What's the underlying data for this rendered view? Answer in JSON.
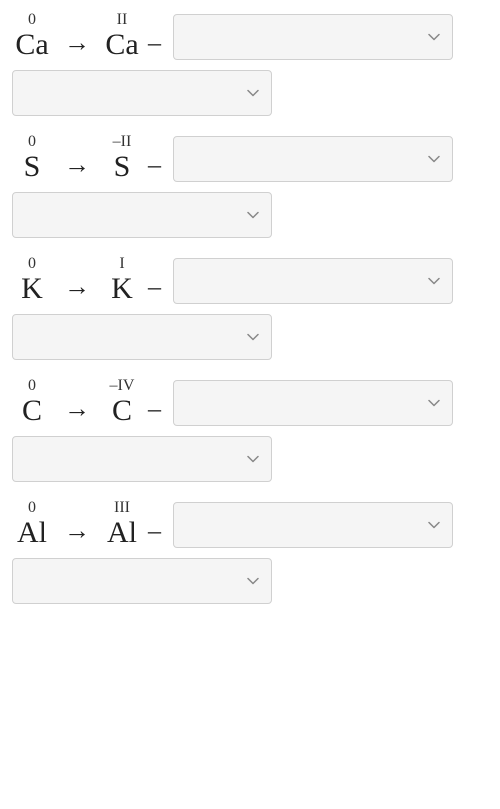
{
  "rows": [
    {
      "left_oxidation": "0",
      "left_element": "Ca",
      "right_oxidation": "II",
      "right_element": "Ca"
    },
    {
      "left_oxidation": "0",
      "left_element": "S",
      "right_oxidation": "–II",
      "right_element": "S"
    },
    {
      "left_oxidation": "0",
      "left_element": "K",
      "right_oxidation": "I",
      "right_element": "K"
    },
    {
      "left_oxidation": "0",
      "left_element": "C",
      "right_oxidation": "–IV",
      "right_element": "C"
    },
    {
      "left_oxidation": "0",
      "left_element": "Al",
      "right_oxidation": "III",
      "right_element": "Al"
    }
  ],
  "arrow_symbol": "→",
  "dash_symbol": "–",
  "styling": {
    "element_fontsize": 30,
    "oxidation_fontsize": 16,
    "element_color": "#222222",
    "oxidation_color": "#333333",
    "dropdown_bg": "#f5f5f5",
    "dropdown_border": "#d0d0d0",
    "chevron_color": "#888888",
    "background": "#ffffff",
    "dropdown_wide_width": 280,
    "dropdown_narrow_width": 260,
    "dropdown_height": 46
  }
}
